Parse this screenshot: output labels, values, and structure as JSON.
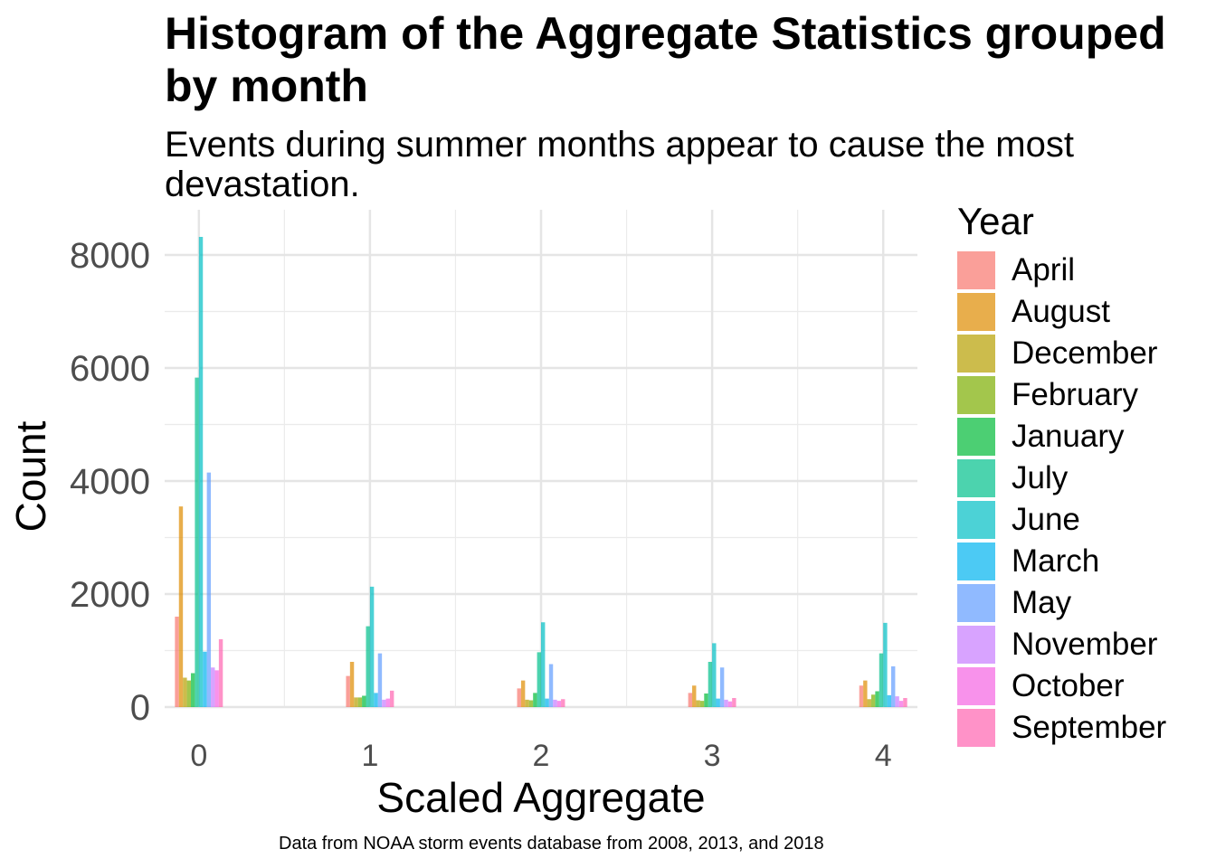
{
  "chart_data": {
    "type": "bar",
    "title": "Histogram of the Aggregate Statistics grouped by month",
    "subtitle": "Events during summer months appear to cause the most devastation.",
    "xlabel": "Scaled Aggregate",
    "ylabel": "Count",
    "caption": "Data from NOAA storm events database from 2008, 2013, and 2018",
    "legend_title": "Year",
    "legend_position": "right",
    "grid": true,
    "xlim": [
      -0.2,
      4.2
    ],
    "ylim": [
      0,
      8800
    ],
    "x_ticks": [
      "0",
      "1",
      "2",
      "3",
      "4"
    ],
    "y_ticks": [
      "0",
      "2000",
      "4000",
      "6000",
      "8000"
    ],
    "categories": [
      "0",
      "1",
      "2",
      "3",
      "4"
    ],
    "series": [
      {
        "name": "April",
        "color": "#F8766D",
        "values": [
          1600,
          550,
          330,
          250,
          380
        ]
      },
      {
        "name": "August",
        "color": "#DE8C00",
        "values": [
          3550,
          800,
          470,
          380,
          470
        ]
      },
      {
        "name": "December",
        "color": "#B79F00",
        "values": [
          520,
          170,
          130,
          120,
          140
        ]
      },
      {
        "name": "February",
        "color": "#7CAE00",
        "values": [
          470,
          170,
          120,
          110,
          220
        ]
      },
      {
        "name": "January",
        "color": "#00BA38",
        "values": [
          600,
          200,
          250,
          240,
          280
        ]
      },
      {
        "name": "July",
        "color": "#00C08B",
        "values": [
          5830,
          1430,
          970,
          800,
          950
        ]
      },
      {
        "name": "June",
        "color": "#00BFC4",
        "values": [
          8320,
          2130,
          1500,
          1130,
          1490
        ]
      },
      {
        "name": "March",
        "color": "#00B4F0",
        "values": [
          980,
          250,
          150,
          150,
          210
        ]
      },
      {
        "name": "May",
        "color": "#619CFF",
        "values": [
          4150,
          950,
          760,
          700,
          720
        ]
      },
      {
        "name": "November",
        "color": "#C77CFF",
        "values": [
          700,
          130,
          130,
          130,
          190
        ]
      },
      {
        "name": "October",
        "color": "#F564E3",
        "values": [
          650,
          150,
          110,
          100,
          110
        ]
      },
      {
        "name": "September",
        "color": "#FF64B0",
        "values": [
          1200,
          290,
          140,
          160,
          160
        ]
      }
    ]
  }
}
